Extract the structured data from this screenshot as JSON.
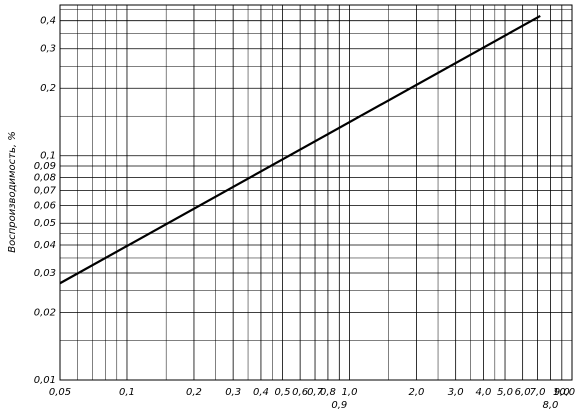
{
  "chart_data": {
    "type": "line",
    "y_label": "Воспроизводимость, %",
    "x": [
      0.05,
      7.2
    ],
    "values": [
      0.027,
      0.42
    ],
    "color": "#000000",
    "x_log": true,
    "y_log": true,
    "grid": true,
    "xlim": [
      0.05,
      10
    ],
    "ylim": [
      0.01,
      0.47
    ],
    "xticks": [
      {
        "value": 0.05,
        "label": "0,05"
      },
      {
        "value": 0.1,
        "label": "0,1"
      },
      {
        "value": 0.2,
        "label": "0,2"
      },
      {
        "value": 0.3,
        "label": "0,3"
      },
      {
        "value": 0.4,
        "label": "0,4"
      },
      {
        "value": 0.5,
        "label": "0,5"
      },
      {
        "value": 0.6,
        "label": "0,6"
      },
      {
        "value": 0.7,
        "label": "0,7"
      },
      {
        "value": 0.8,
        "label": "0,8"
      },
      {
        "value": 0.9,
        "label": "0,9"
      },
      {
        "value": 1,
        "label": "1,0"
      },
      {
        "value": 2,
        "label": "2,0"
      },
      {
        "value": 3,
        "label": "3,0"
      },
      {
        "value": 4,
        "label": "4,0"
      },
      {
        "value": 5,
        "label": "5,0"
      },
      {
        "value": 6,
        "label": "6,0"
      },
      {
        "value": 7,
        "label": "7,0"
      },
      {
        "value": 8,
        "label": "8,0"
      },
      {
        "value": 9,
        "label": "9,0"
      },
      {
        "value": 10,
        "label": "10,0"
      }
    ],
    "yticks": [
      {
        "value": 0.01,
        "label": "0,01"
      },
      {
        "value": 0.02,
        "label": "0,02"
      },
      {
        "value": 0.03,
        "label": "0,03"
      },
      {
        "value": 0.04,
        "label": "0,04"
      },
      {
        "value": 0.05,
        "label": "0,05"
      },
      {
        "value": 0.06,
        "label": "0,06"
      },
      {
        "value": 0.07,
        "label": "0,07"
      },
      {
        "value": 0.08,
        "label": "0,08"
      },
      {
        "value": 0.09,
        "label": "0,09"
      },
      {
        "value": 0.1,
        "label": "0,1"
      },
      {
        "value": 0.2,
        "label": "0,2"
      },
      {
        "value": 0.3,
        "label": "0,3"
      },
      {
        "value": 0.4,
        "label": "0,4"
      }
    ],
    "x_minor_ticks": [
      0.06,
      0.07,
      0.08,
      0.09,
      0.15,
      0.25,
      0.35,
      0.45,
      1.5,
      2.5,
      3.5,
      4.5
    ],
    "y_minor_ticks": [
      0.015,
      0.025,
      0.035,
      0.045,
      0.15,
      0.25,
      0.35,
      0.45
    ]
  }
}
